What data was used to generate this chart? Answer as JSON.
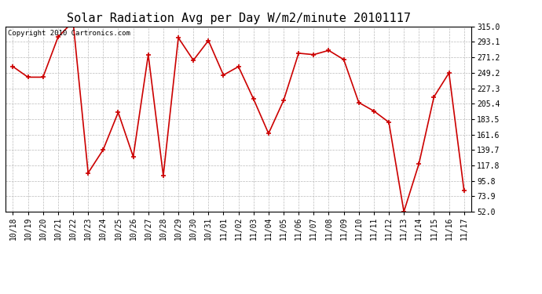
{
  "title": "Solar Radiation Avg per Day W/m2/minute 20101117",
  "copyright": "Copyright 2010 Cartronics.com",
  "labels": [
    "10/18",
    "10/19",
    "10/20",
    "10/21",
    "10/22",
    "10/23",
    "10/24",
    "10/25",
    "10/26",
    "10/27",
    "10/28",
    "10/29",
    "10/30",
    "10/31",
    "11/01",
    "11/02",
    "11/03",
    "11/04",
    "11/05",
    "11/06",
    "11/07",
    "11/08",
    "11/09",
    "11/10",
    "11/11",
    "11/12",
    "11/13",
    "11/14",
    "11/15",
    "11/16",
    "11/17"
  ],
  "values": [
    258,
    243,
    243,
    300,
    322,
    107,
    140,
    193,
    130,
    275,
    103,
    299,
    267,
    295,
    246,
    258,
    212,
    163,
    210,
    277,
    275,
    281,
    268,
    207,
    195,
    179,
    52,
    120,
    215,
    249,
    82
  ],
  "line_color": "#cc0000",
  "marker_color": "#cc0000",
  "bg_color": "#ffffff",
  "grid_color": "#bbbbbb",
  "yticks": [
    52.0,
    73.9,
    95.8,
    117.8,
    139.7,
    161.6,
    183.5,
    205.4,
    227.3,
    249.2,
    271.2,
    293.1,
    315.0
  ],
  "ylim": [
    52.0,
    315.0
  ],
  "title_fontsize": 11,
  "tick_fontsize": 7,
  "copyright_fontsize": 6.5
}
